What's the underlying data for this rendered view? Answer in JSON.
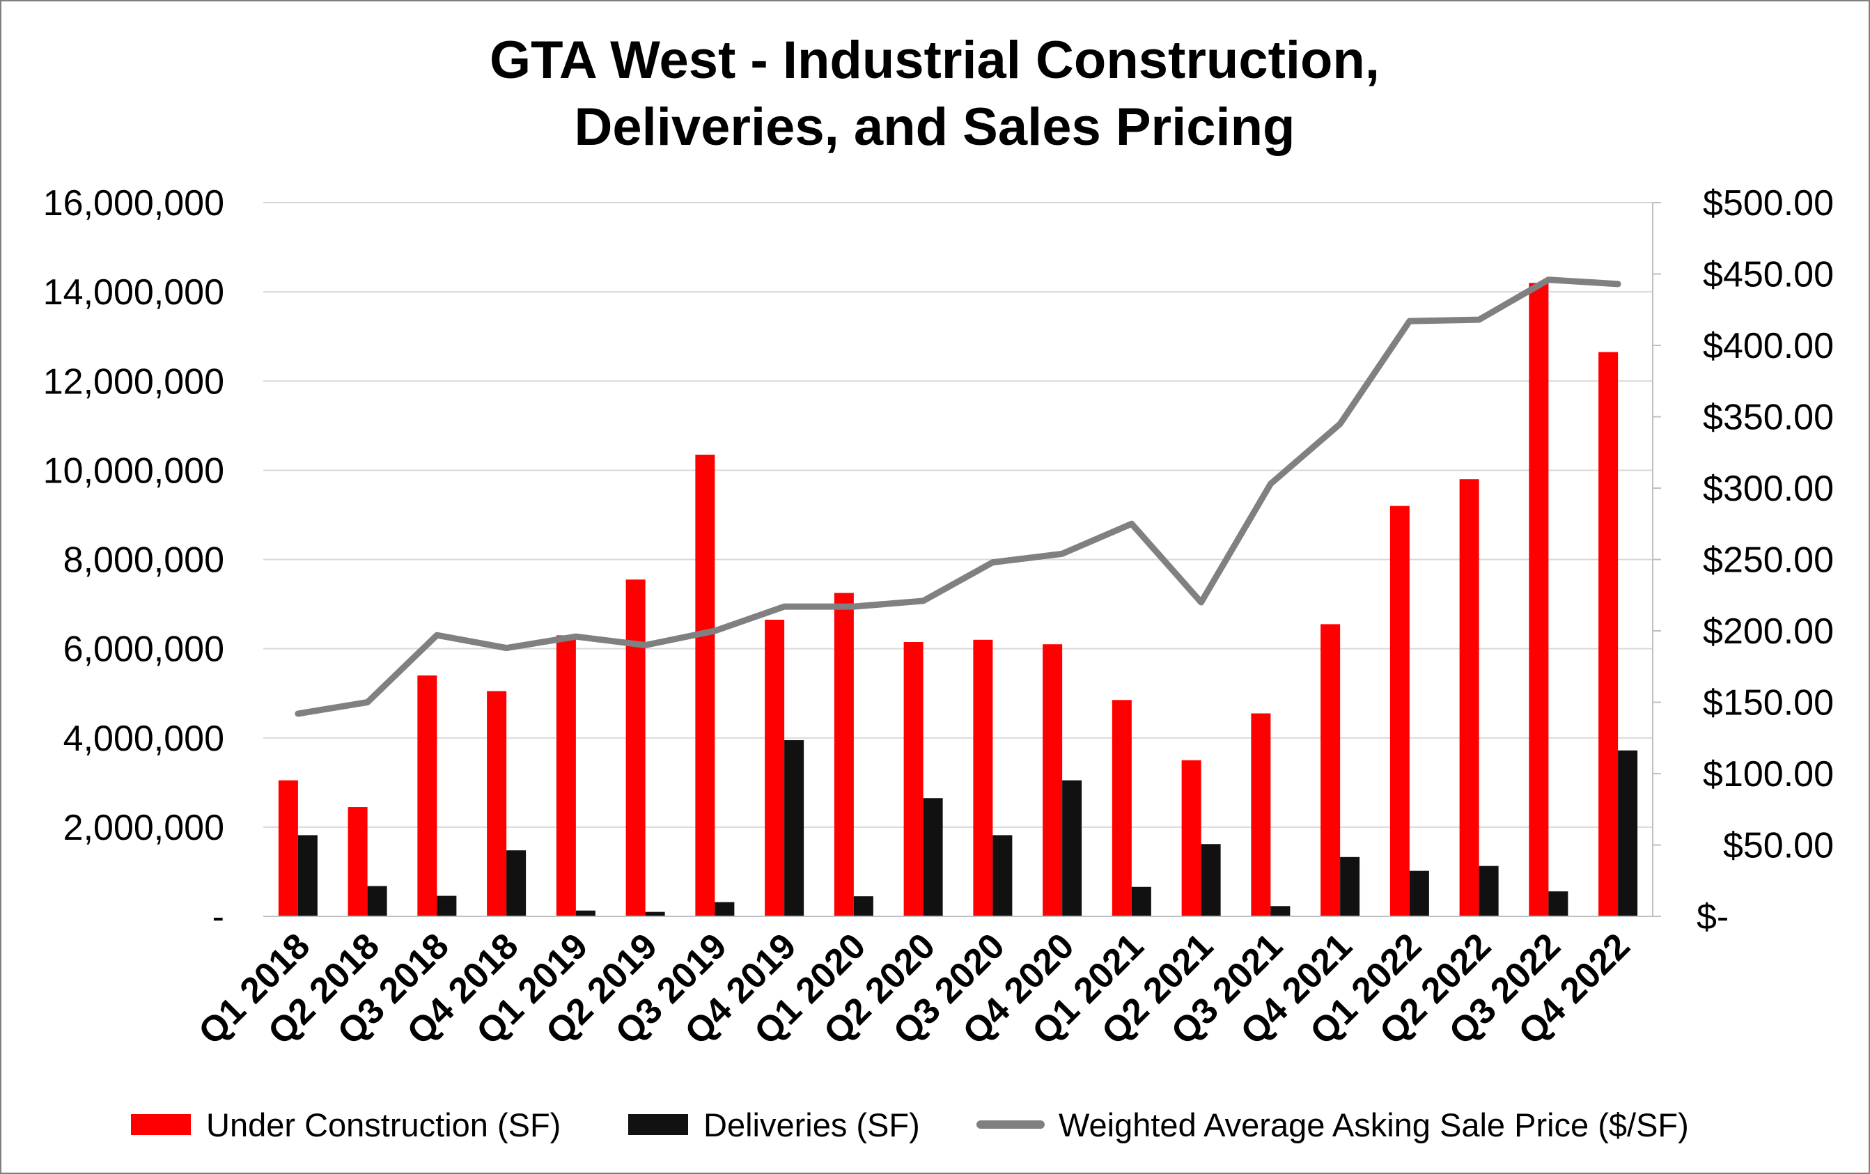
{
  "chart_data": {
    "type": "bar",
    "title": "GTA West - Industrial Construction,",
    "subtitle": "Deliveries, and Sales Pricing",
    "categories": [
      "Q1 2018",
      "Q2 2018",
      "Q3 2018",
      "Q4 2018",
      "Q1 2019",
      "Q2 2019",
      "Q3 2019",
      "Q4 2019",
      "Q1 2020",
      "Q2 2020",
      "Q3 2020",
      "Q4 2020",
      "Q1 2021",
      "Q2 2021",
      "Q3 2021",
      "Q4 2021",
      "Q1 2022",
      "Q2 2022",
      "Q3 2022",
      "Q4 2022"
    ],
    "series": [
      {
        "name": "Under Construction (SF)",
        "type": "bar",
        "axis": "left",
        "color": "#ff0000",
        "values": [
          3050000,
          2450000,
          5400000,
          5050000,
          6300000,
          7550000,
          10350000,
          6650000,
          7250000,
          6150000,
          6200000,
          6100000,
          4850000,
          3500000,
          4550000,
          6550000,
          9200000,
          9800000,
          14200000,
          12650000
        ]
      },
      {
        "name": "Deliveries (SF)",
        "type": "bar",
        "axis": "left",
        "color": "#111111",
        "values": [
          1820000,
          680000,
          460000,
          1480000,
          130000,
          100000,
          320000,
          3950000,
          450000,
          2650000,
          1820000,
          3050000,
          660000,
          1620000,
          230000,
          1330000,
          1020000,
          1130000,
          560000,
          3720000
        ]
      },
      {
        "name": "Weighted Average Asking Sale Price ($/SF)",
        "type": "line",
        "axis": "right",
        "color": "#808080",
        "values": [
          142,
          150,
          197,
          188,
          196,
          190,
          200,
          217,
          217,
          221,
          248,
          254,
          275,
          220,
          303,
          345,
          417,
          418,
          446,
          443
        ]
      }
    ],
    "y_left": {
      "min": 0,
      "max": 16000000,
      "ticks": [
        0,
        2000000,
        4000000,
        6000000,
        8000000,
        10000000,
        12000000,
        14000000,
        16000000
      ],
      "tick_labels": [
        "-",
        "2,000,000",
        "4,000,000",
        "6,000,000",
        "8,000,000",
        "10,000,000",
        "12,000,000",
        "14,000,000",
        "16,000,000"
      ]
    },
    "y_right": {
      "min": 0,
      "max": 500,
      "ticks": [
        0,
        50,
        100,
        150,
        200,
        250,
        300,
        350,
        400,
        450,
        500
      ],
      "tick_labels": [
        "$-",
        "$50.00",
        "$100.00",
        "$150.00",
        "$200.00",
        "$250.00",
        "$300.00",
        "$350.00",
        "$400.00",
        "$450.00",
        "$500.00"
      ]
    },
    "grid": true,
    "legend_position": "bottom"
  }
}
